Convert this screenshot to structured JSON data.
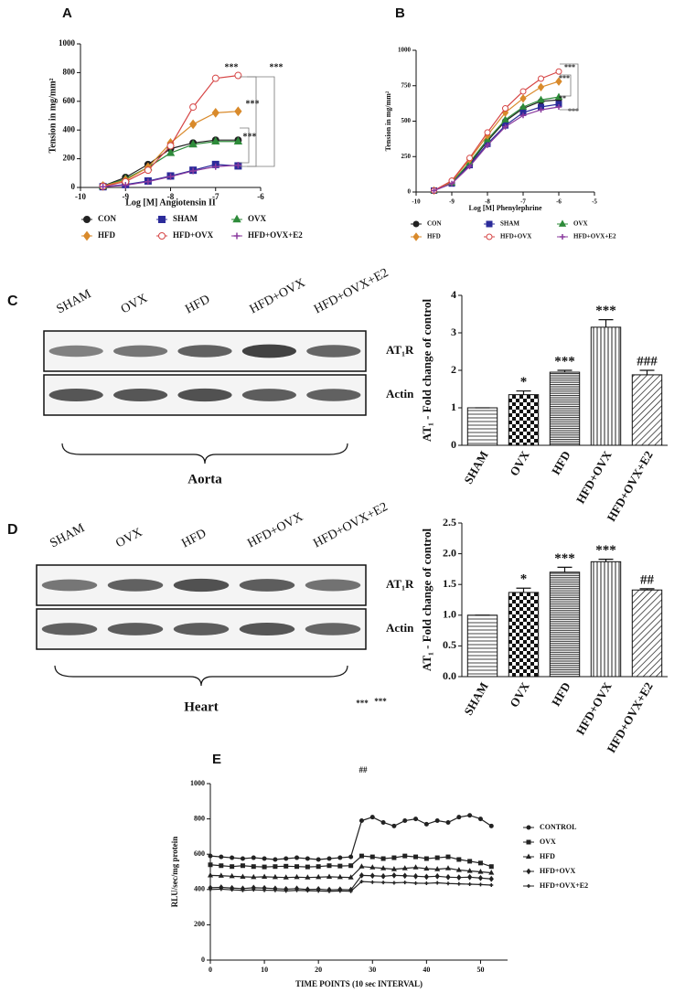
{
  "chart_data": [
    {
      "type": "line",
      "title": "A",
      "xlabel": "Log [M] Angiotensin II",
      "ylabel": "Tension in mg/mm²",
      "x": [
        -9.5,
        -9,
        -8.5,
        -8,
        -7.5,
        -7,
        -6.5
      ],
      "xlim": [
        -10,
        -6
      ],
      "xticks": [
        -10,
        -9,
        -8,
        -7,
        -6
      ],
      "ylim": [
        0,
        1000
      ],
      "yticks": [
        0,
        200,
        400,
        600,
        800,
        1000
      ],
      "annotations": [
        "***",
        "***",
        "***",
        "***"
      ],
      "series": [
        {
          "name": "CON",
          "color": "#222222",
          "marker": "circle",
          "values": [
            10,
            70,
            160,
            270,
            310,
            330,
            330
          ]
        },
        {
          "name": "SHAM",
          "color": "#2b2b9a",
          "marker": "square",
          "values": [
            5,
            20,
            45,
            80,
            120,
            160,
            150
          ]
        },
        {
          "name": "OVX",
          "color": "#2e8b3a",
          "marker": "triangle",
          "values": [
            8,
            60,
            140,
            240,
            300,
            320,
            320
          ]
        },
        {
          "name": "HFD",
          "color": "#d98a2b",
          "marker": "diamond",
          "values": [
            10,
            50,
            140,
            310,
            440,
            520,
            530
          ]
        },
        {
          "name": "HFD+OVX",
          "color": "#d64545",
          "marker": "open-circle",
          "values": [
            8,
            40,
            120,
            290,
            560,
            760,
            780
          ]
        },
        {
          "name": "HFD+OVX+E2",
          "color": "#8a3a9e",
          "marker": "cross",
          "values": [
            5,
            15,
            40,
            75,
            115,
            145,
            155
          ]
        }
      ]
    },
    {
      "type": "line",
      "title": "B",
      "xlabel": "Log [M] Phenylephrine",
      "ylabel": "Tension in mg/mm²",
      "x": [
        -9.5,
        -9,
        -8.5,
        -8,
        -7.5,
        -7,
        -6.5,
        -6
      ],
      "xlim": [
        -10,
        -5
      ],
      "xticks": [
        -10,
        -9,
        -8,
        -7,
        -6,
        -5
      ],
      "ylim": [
        0,
        1000
      ],
      "yticks": [
        0,
        250,
        500,
        750,
        1000
      ],
      "annotations": [
        "***",
        "***",
        "**",
        "***"
      ],
      "series": [
        {
          "name": "CON",
          "color": "#222222",
          "marker": "circle",
          "values": [
            10,
            70,
            200,
            360,
            500,
            590,
            640,
            650
          ]
        },
        {
          "name": "SHAM",
          "color": "#2b2b9a",
          "marker": "square",
          "values": [
            10,
            60,
            190,
            340,
            470,
            560,
            600,
            620
          ]
        },
        {
          "name": "OVX",
          "color": "#2e8b3a",
          "marker": "triangle",
          "values": [
            10,
            65,
            210,
            370,
            510,
            600,
            650,
            670
          ]
        },
        {
          "name": "HFD",
          "color": "#d98a2b",
          "marker": "diamond",
          "values": [
            10,
            75,
            230,
            400,
            560,
            660,
            740,
            780
          ]
        },
        {
          "name": "HFD+OVX",
          "color": "#d64545",
          "marker": "open-circle",
          "values": [
            10,
            80,
            240,
            420,
            590,
            710,
            800,
            850
          ]
        },
        {
          "name": "HFD+OVX+E2",
          "color": "#8a3a9e",
          "marker": "cross",
          "values": [
            10,
            60,
            180,
            330,
            460,
            540,
            580,
            600
          ]
        }
      ]
    },
    {
      "type": "bar",
      "ylabel": "AT₁ - Fold change of control",
      "categories": [
        "SHAM",
        "OVX",
        "HFD",
        "HFD+OVX",
        "HFD+OVX+E2"
      ],
      "values": [
        1,
        1.35,
        1.95,
        3.15,
        1.88
      ],
      "errors": [
        0,
        0.1,
        0.05,
        0.2,
        0.12
      ],
      "annotations": [
        null,
        "*",
        "***",
        "***",
        "###"
      ],
      "patterns": [
        "hlines",
        "checker",
        "dense",
        "vlines",
        "diag"
      ],
      "ylim": [
        0,
        4
      ],
      "yticks": [
        0,
        1,
        2,
        3,
        4
      ]
    },
    {
      "type": "bar",
      "ylabel": "AT₁ - Fold change of control",
      "categories": [
        "SHAM",
        "OVX",
        "HFD",
        "HFD+OVX",
        "HFD+OVX+E2"
      ],
      "values": [
        1,
        1.37,
        1.7,
        1.87,
        1.41
      ],
      "errors": [
        0,
        0.07,
        0.08,
        0.04,
        0.02
      ],
      "annotations": [
        null,
        "*",
        "***",
        "***",
        "##"
      ],
      "patterns": [
        "hlines",
        "checker",
        "dense",
        "vlines",
        "diag"
      ],
      "ylim": [
        0,
        2.5
      ],
      "yticks": [
        {
          "value": 0,
          "label": "0.0"
        },
        0.5,
        {
          "value": 1,
          "label": "1.0"
        },
        1.5,
        {
          "value": 2,
          "label": "2.0"
        },
        2.5
      ]
    },
    {
      "type": "line",
      "title": "E",
      "xlabel": "TIME POINTS (10 sec INTERVAL)",
      "ylabel": "RLU/sec/mg protein",
      "x": [
        0,
        2,
        4,
        6,
        8,
        10,
        12,
        14,
        16,
        18,
        20,
        22,
        24,
        26,
        28,
        30,
        32,
        34,
        36,
        38,
        40,
        42,
        44,
        46,
        48,
        50,
        52
      ],
      "xlim": [
        0,
        55
      ],
      "xticks": [
        0,
        10,
        20,
        30,
        40,
        50
      ],
      "ylim": [
        0,
        1000
      ],
      "yticks": [
        0,
        200,
        400,
        600,
        800,
        1000
      ],
      "annotations": [
        "***",
        "***",
        "##"
      ],
      "series": [
        {
          "name": "CONTROL",
          "color": "#222222",
          "marker": "circle",
          "values": [
            590,
            585,
            580,
            575,
            580,
            575,
            570,
            575,
            580,
            575,
            570,
            575,
            580,
            585,
            790,
            810,
            780,
            760,
            790,
            800,
            770,
            790,
            780,
            810,
            820,
            800,
            760
          ]
        },
        {
          "name": "OVX",
          "color": "#222222",
          "marker": "square",
          "values": [
            540,
            535,
            530,
            535,
            530,
            528,
            530,
            532,
            530,
            528,
            530,
            535,
            533,
            535,
            590,
            585,
            575,
            580,
            590,
            585,
            575,
            580,
            585,
            570,
            560,
            550,
            530
          ]
        },
        {
          "name": "HFD",
          "color": "#222222",
          "marker": "triangle",
          "values": [
            480,
            478,
            475,
            472,
            470,
            472,
            470,
            468,
            470,
            468,
            470,
            472,
            470,
            468,
            530,
            525,
            520,
            515,
            520,
            525,
            518,
            515,
            520,
            510,
            505,
            500,
            495
          ]
        },
        {
          "name": "HFD+OVX",
          "color": "#222222",
          "marker": "diamond",
          "values": [
            410,
            412,
            408,
            405,
            410,
            408,
            405,
            402,
            405,
            400,
            402,
            398,
            400,
            398,
            480,
            478,
            475,
            480,
            478,
            475,
            472,
            475,
            470,
            468,
            470,
            465,
            460
          ]
        },
        {
          "name": "HFD+OVX+E2",
          "color": "#222222",
          "marker": "cross",
          "values": [
            400,
            402,
            398,
            395,
            398,
            396,
            395,
            392,
            395,
            393,
            392,
            390,
            392,
            390,
            445,
            442,
            440,
            438,
            440,
            436,
            435,
            438,
            434,
            432,
            430,
            428,
            425
          ]
        }
      ]
    }
  ],
  "blots": [
    {
      "label": "C",
      "lanes": [
        "SHAM",
        "OVX",
        "HFD",
        "HFD+OVX",
        "HFD+OVX+E2"
      ],
      "rows": [
        "AT₁R",
        "Actin"
      ],
      "tissue": "Aorta"
    },
    {
      "label": "D",
      "lanes": [
        "SHAM",
        "OVX",
        "HFD",
        "HFD+OVX",
        "HFD+OVX+E2"
      ],
      "rows": [
        "AT₁R",
        "Actin"
      ],
      "tissue": "Heart"
    }
  ]
}
